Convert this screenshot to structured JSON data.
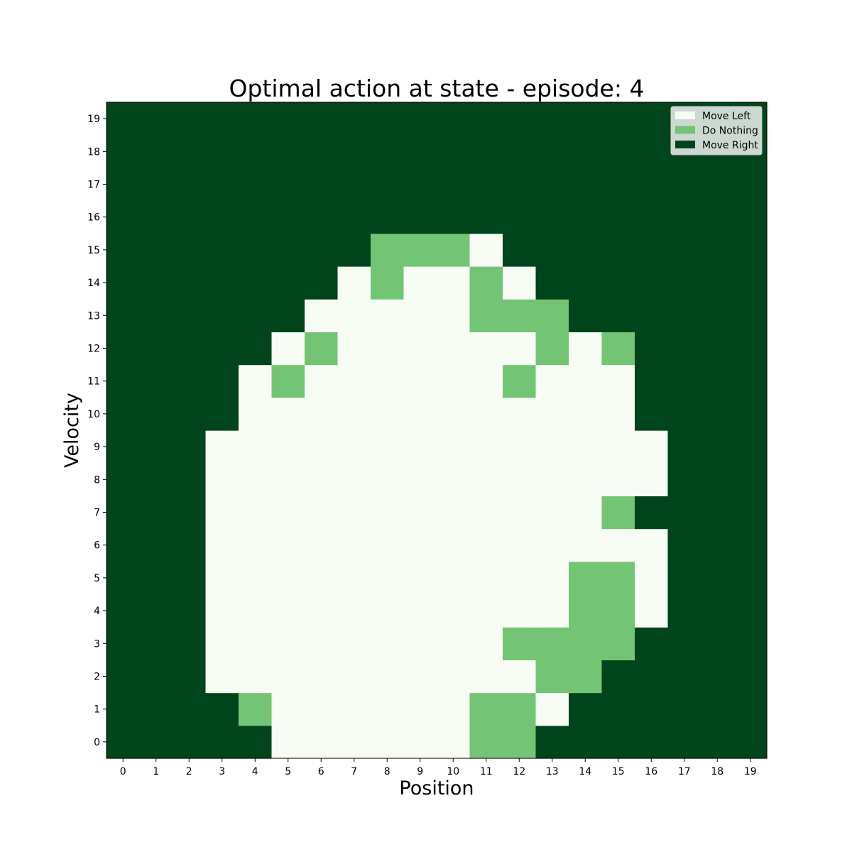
{
  "chart_data": {
    "type": "heatmap",
    "title": "Optimal action at state - episode: 4",
    "xlabel": "Position",
    "ylabel": "Velocity",
    "x_ticks": [
      "0",
      "1",
      "2",
      "3",
      "4",
      "5",
      "6",
      "7",
      "8",
      "9",
      "10",
      "11",
      "12",
      "13",
      "14",
      "15",
      "16",
      "17",
      "18",
      "19"
    ],
    "y_ticks": [
      "0",
      "1",
      "2",
      "3",
      "4",
      "5",
      "6",
      "7",
      "8",
      "9",
      "10",
      "11",
      "12",
      "13",
      "14",
      "15",
      "16",
      "17",
      "18",
      "19"
    ],
    "legend": {
      "placement": "top-right",
      "entries": [
        {
          "label": "Move Left",
          "value": 0,
          "color": "#f7fcf5"
        },
        {
          "label": "Do Nothing",
          "value": 1,
          "color": "#74c476"
        },
        {
          "label": "Move Right",
          "value": 2,
          "color": "#00441b"
        }
      ]
    },
    "grid": false,
    "values_by_velocity": [
      [
        2,
        2,
        2,
        2,
        2,
        0,
        0,
        0,
        0,
        0,
        0,
        1,
        1,
        2,
        2,
        2,
        2,
        2,
        2,
        2
      ],
      [
        2,
        2,
        2,
        2,
        1,
        0,
        0,
        0,
        0,
        0,
        0,
        1,
        1,
        0,
        2,
        2,
        2,
        2,
        2,
        2
      ],
      [
        2,
        2,
        2,
        0,
        0,
        0,
        0,
        0,
        0,
        0,
        0,
        0,
        0,
        1,
        1,
        2,
        2,
        2,
        2,
        2
      ],
      [
        2,
        2,
        2,
        0,
        0,
        0,
        0,
        0,
        0,
        0,
        0,
        0,
        1,
        1,
        1,
        1,
        2,
        2,
        2,
        2
      ],
      [
        2,
        2,
        2,
        0,
        0,
        0,
        0,
        0,
        0,
        0,
        0,
        0,
        0,
        0,
        1,
        1,
        0,
        2,
        2,
        2
      ],
      [
        2,
        2,
        2,
        0,
        0,
        0,
        0,
        0,
        0,
        0,
        0,
        0,
        0,
        0,
        1,
        1,
        0,
        2,
        2,
        2
      ],
      [
        2,
        2,
        2,
        0,
        0,
        0,
        0,
        0,
        0,
        0,
        0,
        0,
        0,
        0,
        0,
        0,
        0,
        2,
        2,
        2
      ],
      [
        2,
        2,
        2,
        0,
        0,
        0,
        0,
        0,
        0,
        0,
        0,
        0,
        0,
        0,
        0,
        1,
        2,
        2,
        2,
        2
      ],
      [
        2,
        2,
        2,
        0,
        0,
        0,
        0,
        0,
        0,
        0,
        0,
        0,
        0,
        0,
        0,
        0,
        0,
        2,
        2,
        2
      ],
      [
        2,
        2,
        2,
        0,
        0,
        0,
        0,
        0,
        0,
        0,
        0,
        0,
        0,
        0,
        0,
        0,
        0,
        2,
        2,
        2
      ],
      [
        2,
        2,
        2,
        2,
        0,
        0,
        0,
        0,
        0,
        0,
        0,
        0,
        0,
        0,
        0,
        0,
        2,
        2,
        2,
        2
      ],
      [
        2,
        2,
        2,
        2,
        0,
        1,
        0,
        0,
        0,
        0,
        0,
        0,
        1,
        0,
        0,
        0,
        2,
        2,
        2,
        2
      ],
      [
        2,
        2,
        2,
        2,
        2,
        0,
        1,
        0,
        0,
        0,
        0,
        0,
        0,
        1,
        0,
        1,
        2,
        2,
        2,
        2
      ],
      [
        2,
        2,
        2,
        2,
        2,
        2,
        0,
        0,
        0,
        0,
        0,
        1,
        1,
        1,
        2,
        2,
        2,
        2,
        2,
        2
      ],
      [
        2,
        2,
        2,
        2,
        2,
        2,
        2,
        0,
        1,
        0,
        0,
        1,
        0,
        2,
        2,
        2,
        2,
        2,
        2,
        2
      ],
      [
        2,
        2,
        2,
        2,
        2,
        2,
        2,
        2,
        1,
        1,
        1,
        0,
        2,
        2,
        2,
        2,
        2,
        2,
        2,
        2
      ],
      [
        2,
        2,
        2,
        2,
        2,
        2,
        2,
        2,
        2,
        2,
        2,
        2,
        2,
        2,
        2,
        2,
        2,
        2,
        2,
        2
      ],
      [
        2,
        2,
        2,
        2,
        2,
        2,
        2,
        2,
        2,
        2,
        2,
        2,
        2,
        2,
        2,
        2,
        2,
        2,
        2,
        2
      ],
      [
        2,
        2,
        2,
        2,
        2,
        2,
        2,
        2,
        2,
        2,
        2,
        2,
        2,
        2,
        2,
        2,
        2,
        2,
        2,
        2
      ],
      [
        2,
        2,
        2,
        2,
        2,
        2,
        2,
        2,
        2,
        2,
        2,
        2,
        2,
        2,
        2,
        2,
        2,
        2,
        2,
        2
      ]
    ]
  }
}
